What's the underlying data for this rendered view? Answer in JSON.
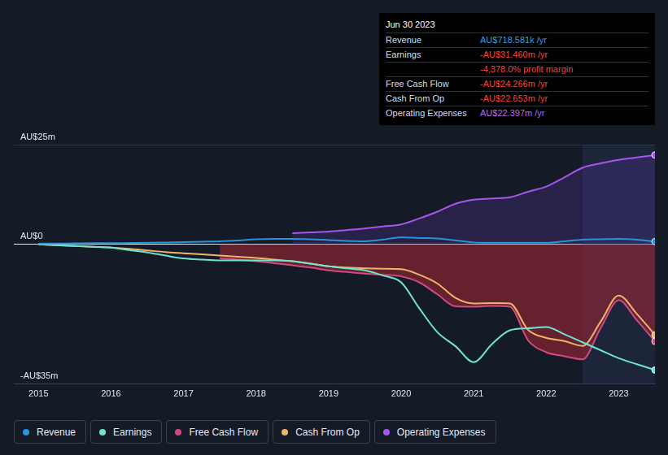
{
  "chart_data": {
    "type": "line",
    "x": [
      2015,
      2015.25,
      2015.5,
      2015.75,
      2016,
      2016.25,
      2016.5,
      2016.75,
      2017,
      2017.25,
      2017.5,
      2017.75,
      2018,
      2018.25,
      2018.5,
      2018.75,
      2019,
      2019.25,
      2019.5,
      2019.75,
      2020,
      2020.25,
      2020.5,
      2020.75,
      2021,
      2021.25,
      2021.5,
      2021.75,
      2022,
      2022.25,
      2022.5,
      2022.75,
      2023,
      2023.25,
      2023.5
    ],
    "xlim": [
      2014.66,
      2023.5
    ],
    "xticks": [
      2015,
      2016,
      2017,
      2018,
      2019,
      2020,
      2021,
      2022,
      2023
    ],
    "ylim": [
      -35,
      25
    ],
    "yticks": [
      {
        "value": 25,
        "label": "AU$25m"
      },
      {
        "value": 0,
        "label": "AU$0"
      },
      {
        "value": -35,
        "label": "-AU$35m"
      }
    ],
    "grid": true,
    "legend": "bottom",
    "series": [
      {
        "name": "Revenue",
        "color": "#2394df",
        "values": [
          0.2,
          0.2,
          0.25,
          0.3,
          0.3,
          0.35,
          0.4,
          0.5,
          0.6,
          0.7,
          0.8,
          1.0,
          1.3,
          1.4,
          1.4,
          1.3,
          1.1,
          0.9,
          0.8,
          1.2,
          1.8,
          1.6,
          1.5,
          1.0,
          0.5,
          0.4,
          0.4,
          0.4,
          0.4,
          0.8,
          1.2,
          1.3,
          1.4,
          1.2,
          0.718581
        ]
      },
      {
        "name": "Earnings",
        "color": "#6fe3d0",
        "values": [
          0,
          -0.2,
          -0.4,
          -0.6,
          -0.8,
          -1.4,
          -2,
          -2.8,
          -3.5,
          -3.8,
          -4,
          -4,
          -4,
          -4,
          -4.2,
          -4.8,
          -5.5,
          -6,
          -6.5,
          -7.8,
          -9.5,
          -16,
          -22,
          -25.5,
          -29.5,
          -25,
          -21.5,
          -21,
          -20.7,
          -22.5,
          -24.5,
          -26.5,
          -28.5,
          -30,
          -31.46
        ]
      },
      {
        "name": "Free Cash Flow",
        "color": "#cf4a82",
        "values": [
          null,
          null,
          null,
          null,
          null,
          null,
          null,
          null,
          null,
          null,
          -3.5,
          -3.8,
          -4.2,
          -4.7,
          -5.2,
          -5.8,
          -6.5,
          -6.9,
          -7.3,
          -7.6,
          -8,
          -9.5,
          -12.5,
          -15.5,
          -15.6,
          -15.4,
          -15.6,
          -24,
          -27,
          -28,
          -28.8,
          -21,
          -14,
          -19,
          -24.266
        ]
      },
      {
        "name": "Cash From Op",
        "color": "#f0b468",
        "values": [
          0,
          -0.2,
          -0.4,
          -0.6,
          -0.8,
          -1.1,
          -1.5,
          -1.9,
          -2.2,
          -2.5,
          -2.8,
          -3.1,
          -3.4,
          -3.8,
          -4.2,
          -4.8,
          -5.5,
          -5.8,
          -6,
          -6.1,
          -6.2,
          -7.6,
          -9.8,
          -13.4,
          -14.8,
          -14.7,
          -14.8,
          -21.4,
          -23.4,
          -24.2,
          -25.4,
          -19.4,
          -12.8,
          -17.4,
          -22.653
        ]
      },
      {
        "name": "Operating Expenses",
        "color": "#a855f0",
        "values": [
          null,
          null,
          null,
          null,
          null,
          null,
          null,
          null,
          null,
          null,
          null,
          null,
          null,
          null,
          2.8,
          3.0,
          3.2,
          3.6,
          4,
          4.5,
          5,
          6.5,
          8.2,
          10.2,
          11.2,
          11.5,
          11.8,
          13.2,
          14.5,
          16.8,
          19.2,
          20.3,
          21.2,
          21.8,
          22.397
        ]
      }
    ],
    "info_box": {
      "title": "Jun 30 2023",
      "rows": [
        {
          "label": "Revenue",
          "value": "AU$718.581k /yr",
          "color": "#3d9be6"
        },
        {
          "label": "Earnings",
          "value": "-AU$31.460m /yr",
          "color": "#f0443f"
        },
        {
          "value": "-4,378.0% profit margin",
          "color": "#f0443f"
        },
        {
          "label": "Free Cash Flow",
          "value": "-AU$24.266m /yr",
          "color": "#f0443f"
        },
        {
          "label": "Cash From Op",
          "value": "-AU$22.653m /yr",
          "color": "#f0443f"
        },
        {
          "label": "Operating Expenses",
          "value": "AU$22.397m /yr",
          "color": "#b46cf2"
        }
      ]
    }
  }
}
